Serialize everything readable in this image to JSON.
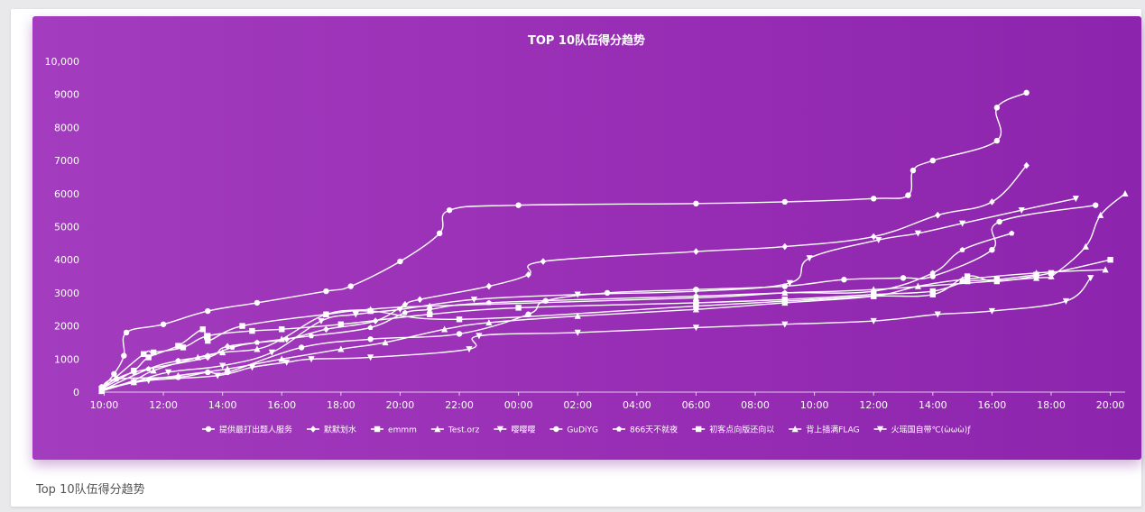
{
  "card": {
    "caption": "Top 10队伍得分趋势"
  },
  "colors": {
    "panel_start": "#a33cbe",
    "panel_end": "#8c24ad",
    "line": "#ffffff",
    "card_bg": "#ffffff",
    "page_bg": "#e9e9ec"
  },
  "chart_data": {
    "type": "line",
    "title": "TOP 10队伍得分趋势",
    "xlabel": "",
    "ylabel": "",
    "x_axis": "time",
    "x_range": [
      "09:50",
      "20:30 (+1 day)"
    ],
    "x_ticks": [
      "10:00",
      "12:00",
      "14:00",
      "16:00",
      "18:00",
      "20:00",
      "22:00",
      "00:00",
      "02:00",
      "04:00",
      "06:00",
      "08:00",
      "10:00",
      "12:00",
      "14:00",
      "16:00",
      "18:00",
      "20:00"
    ],
    "ylim": [
      0,
      10000
    ],
    "y_ticks": [
      "0",
      "1000",
      "2000",
      "3000",
      "4000",
      "5000",
      "6000",
      "7000",
      "8000",
      "9000",
      "10,000"
    ],
    "grid": false,
    "legend_position": "bottom",
    "series": [
      {
        "name": "提供最打出题人服务",
        "marker": "circle",
        "points": [
          [
            "09:55",
            150
          ],
          [
            "10:25",
            400
          ],
          [
            "12:30",
            450
          ],
          [
            "13:30",
            600
          ],
          [
            "14:10",
            600
          ],
          [
            "16:40",
            1350
          ],
          [
            "19:00",
            1600
          ],
          [
            "22:00",
            1760
          ],
          [
            "00:20",
            2350
          ],
          [
            "00:55",
            2760
          ],
          [
            "03:00",
            3000
          ],
          [
            "06:00",
            3100
          ],
          [
            "09:00",
            3200
          ],
          [
            "11:00",
            3400
          ],
          [
            "13:00",
            3450
          ],
          [
            "14:00",
            3500
          ],
          [
            "16:00",
            4300
          ],
          [
            "16:15",
            5150
          ],
          [
            "19:30",
            5650
          ]
        ]
      },
      {
        "name": "默默划水",
        "marker": "diamond",
        "points": [
          [
            "09:55",
            150
          ],
          [
            "11:00",
            600
          ],
          [
            "13:30",
            1050
          ],
          [
            "14:10",
            1380
          ],
          [
            "16:10",
            1600
          ],
          [
            "17:30",
            1900
          ],
          [
            "19:10",
            2150
          ],
          [
            "20:10",
            2650
          ],
          [
            "20:40",
            2800
          ],
          [
            "23:00",
            3200
          ],
          [
            "00:20",
            3550
          ],
          [
            "00:50",
            3950
          ],
          [
            "06:00",
            4250
          ],
          [
            "09:00",
            4400
          ],
          [
            "12:00",
            4700
          ],
          [
            "14:10",
            5350
          ],
          [
            "16:00",
            5750
          ],
          [
            "17:10",
            6850
          ]
        ]
      },
      {
        "name": "emmm",
        "marker": "square",
        "points": [
          [
            "09:55",
            100
          ],
          [
            "11:00",
            650
          ],
          [
            "11:30",
            1050
          ],
          [
            "12:30",
            1400
          ],
          [
            "13:20",
            1900
          ],
          [
            "13:30",
            1550
          ],
          [
            "14:40",
            2000
          ],
          [
            "17:30",
            2350
          ],
          [
            "19:00",
            2450
          ],
          [
            "22:00",
            2200
          ],
          [
            "06:00",
            2600
          ],
          [
            "09:00",
            2750
          ],
          [
            "12:00",
            2900
          ],
          [
            "14:00",
            2950
          ],
          [
            "15:10",
            3500
          ],
          [
            "16:10",
            3350
          ],
          [
            "18:00",
            3600
          ],
          [
            "20:00",
            4000
          ]
        ]
      },
      {
        "name": "Test.orz",
        "marker": "triangle-up",
        "points": [
          [
            "09:55",
            50
          ],
          [
            "11:00",
            350
          ],
          [
            "11:40",
            650
          ],
          [
            "13:10",
            1050
          ],
          [
            "14:00",
            1200
          ],
          [
            "15:10",
            1300
          ],
          [
            "16:00",
            1600
          ],
          [
            "17:30",
            2350
          ],
          [
            "19:00",
            2500
          ],
          [
            "21:00",
            2600
          ],
          [
            "06:00",
            2850
          ],
          [
            "09:00",
            3000
          ],
          [
            "12:00",
            3100
          ],
          [
            "17:30",
            3450
          ],
          [
            "18:00",
            3500
          ],
          [
            "19:10",
            4400
          ],
          [
            "19:40",
            5350
          ],
          [
            "20:30",
            6000
          ]
        ]
      },
      {
        "name": "嘤嘤嘤",
        "marker": "triangle-down",
        "points": [
          [
            "09:55",
            100
          ],
          [
            "11:30",
            350
          ],
          [
            "13:50",
            500
          ],
          [
            "15:00",
            750
          ],
          [
            "16:10",
            900
          ],
          [
            "17:00",
            1000
          ],
          [
            "19:00",
            1050
          ],
          [
            "22:20",
            1300
          ],
          [
            "22:40",
            1700
          ],
          [
            "02:00",
            1800
          ],
          [
            "06:00",
            1950
          ],
          [
            "09:00",
            2050
          ],
          [
            "12:00",
            2150
          ],
          [
            "14:10",
            2350
          ],
          [
            "16:00",
            2450
          ],
          [
            "18:30",
            2750
          ],
          [
            "19:20",
            3450
          ]
        ]
      },
      {
        "name": "GuDiYG",
        "marker": "circle",
        "points": [
          [
            "09:55",
            100
          ],
          [
            "10:20",
            550
          ],
          [
            "10:40",
            1100
          ],
          [
            "10:45",
            1800
          ],
          [
            "12:00",
            2050
          ],
          [
            "13:30",
            2450
          ],
          [
            "15:10",
            2700
          ],
          [
            "17:30",
            3050
          ],
          [
            "18:20",
            3200
          ],
          [
            "20:00",
            3950
          ],
          [
            "21:20",
            4800
          ],
          [
            "21:40",
            5500
          ],
          [
            "00:00",
            5650
          ],
          [
            "06:00",
            5700
          ],
          [
            "09:00",
            5750
          ],
          [
            "12:00",
            5850
          ],
          [
            "13:10",
            5950
          ],
          [
            "13:20",
            6700
          ],
          [
            "14:00",
            7000
          ],
          [
            "16:10",
            7600
          ],
          [
            "16:10",
            8600
          ],
          [
            "17:10",
            9050
          ]
        ]
      },
      {
        "name": "866天不就夜",
        "marker": "pentagon",
        "points": [
          [
            "09:55",
            50
          ],
          [
            "11:30",
            700
          ],
          [
            "12:30",
            950
          ],
          [
            "13:30",
            1100
          ],
          [
            "14:20",
            1350
          ],
          [
            "15:10",
            1500
          ],
          [
            "17:00",
            1700
          ],
          [
            "19:00",
            1950
          ],
          [
            "20:10",
            2400
          ],
          [
            "21:00",
            2500
          ],
          [
            "23:00",
            2700
          ],
          [
            "06:00",
            2900
          ],
          [
            "09:00",
            3000
          ],
          [
            "12:00",
            3050
          ],
          [
            "14:00",
            3600
          ],
          [
            "15:00",
            4300
          ],
          [
            "16:40",
            4800
          ]
        ]
      },
      {
        "name": "初客点向版还向以",
        "marker": "square",
        "points": [
          [
            "09:55",
            80
          ],
          [
            "11:20",
            1150
          ],
          [
            "11:40",
            1200
          ],
          [
            "12:40",
            1350
          ],
          [
            "13:30",
            1700
          ],
          [
            "15:00",
            1850
          ],
          [
            "16:00",
            1900
          ],
          [
            "18:00",
            2050
          ],
          [
            "21:00",
            2350
          ],
          [
            "00:00",
            2550
          ],
          [
            "06:00",
            2700
          ],
          [
            "09:00",
            2800
          ],
          [
            "12:00",
            2950
          ],
          [
            "14:00",
            3050
          ],
          [
            "15:10",
            3350
          ],
          [
            "16:10",
            3400
          ],
          [
            "17:30",
            3550
          ]
        ]
      },
      {
        "name": "背上插满FLAG",
        "marker": "triangle-up",
        "points": [
          [
            "09:55",
            30
          ],
          [
            "11:00",
            300
          ],
          [
            "12:30",
            500
          ],
          [
            "14:10",
            700
          ],
          [
            "16:00",
            1000
          ],
          [
            "18:00",
            1300
          ],
          [
            "19:30",
            1500
          ],
          [
            "21:30",
            1900
          ],
          [
            "23:00",
            2100
          ],
          [
            "02:00",
            2300
          ],
          [
            "06:00",
            2500
          ],
          [
            "09:00",
            2700
          ],
          [
            "12:00",
            2900
          ],
          [
            "13:30",
            3200
          ],
          [
            "15:00",
            3400
          ],
          [
            "17:30",
            3600
          ],
          [
            "19:50",
            3700
          ]
        ]
      },
      {
        "name": "火瑶国自带℃(ὼωὼ)ƒ",
        "marker": "triangle-down",
        "points": [
          [
            "09:55",
            60
          ],
          [
            "11:00",
            300
          ],
          [
            "12:10",
            600
          ],
          [
            "14:00",
            800
          ],
          [
            "15:40",
            1200
          ],
          [
            "17:20",
            2150
          ],
          [
            "18:30",
            2350
          ],
          [
            "20:00",
            2500
          ],
          [
            "22:30",
            2800
          ],
          [
            "02:00",
            2950
          ],
          [
            "06:00",
            3050
          ],
          [
            "09:10",
            3300
          ],
          [
            "09:50",
            4050
          ],
          [
            "12:10",
            4600
          ],
          [
            "13:30",
            4800
          ],
          [
            "15:00",
            5100
          ],
          [
            "17:00",
            5500
          ],
          [
            "18:50",
            5850
          ]
        ]
      }
    ]
  }
}
